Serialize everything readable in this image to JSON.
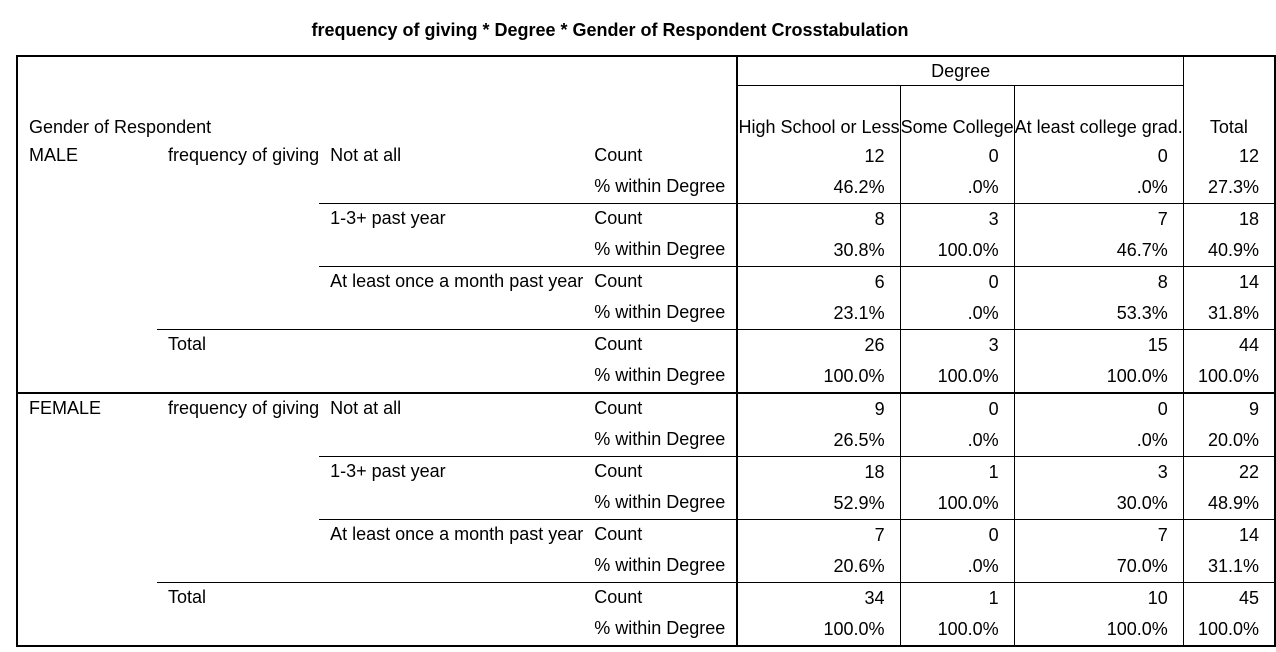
{
  "title": "frequency of giving * Degree * Gender of Respondent Crosstabulation",
  "header": {
    "row_label": "Gender of Respondent",
    "degree_label": "Degree",
    "columns": [
      "High School or Less",
      "Some College",
      "At least college grad.",
      "Total"
    ]
  },
  "groups": [
    {
      "gender": "MALE",
      "variable": "frequency of giving",
      "categories": [
        {
          "name": "Not at all",
          "count": [
            "12",
            "0",
            "0",
            "12"
          ],
          "percent": [
            "46.2%",
            ".0%",
            ".0%",
            "27.3%"
          ]
        },
        {
          "name": "1-3+ past year",
          "count": [
            "8",
            "3",
            "7",
            "18"
          ],
          "percent": [
            "30.8%",
            "100.0%",
            "46.7%",
            "40.9%"
          ]
        },
        {
          "name": "At least once a month past year",
          "count": [
            "6",
            "0",
            "8",
            "14"
          ],
          "percent": [
            "23.1%",
            ".0%",
            "53.3%",
            "31.8%"
          ]
        }
      ],
      "total": {
        "name": "Total",
        "count": [
          "26",
          "3",
          "15",
          "44"
        ],
        "percent": [
          "100.0%",
          "100.0%",
          "100.0%",
          "100.0%"
        ]
      }
    },
    {
      "gender": "FEMALE",
      "variable": "frequency of giving",
      "categories": [
        {
          "name": "Not at all",
          "count": [
            "9",
            "0",
            "0",
            "9"
          ],
          "percent": [
            "26.5%",
            ".0%",
            ".0%",
            "20.0%"
          ]
        },
        {
          "name": "1-3+ past year",
          "count": [
            "18",
            "1",
            "3",
            "22"
          ],
          "percent": [
            "52.9%",
            "100.0%",
            "30.0%",
            "48.9%"
          ]
        },
        {
          "name": "At least once a month past year",
          "count": [
            "7",
            "0",
            "7",
            "14"
          ],
          "percent": [
            "20.6%",
            ".0%",
            "70.0%",
            "31.1%"
          ]
        }
      ],
      "total": {
        "name": "Total",
        "count": [
          "34",
          "1",
          "10",
          "45"
        ],
        "percent": [
          "100.0%",
          "100.0%",
          "100.0%",
          "100.0%"
        ]
      }
    }
  ],
  "stat_labels": {
    "count": "Count",
    "percent": "% within Degree"
  }
}
